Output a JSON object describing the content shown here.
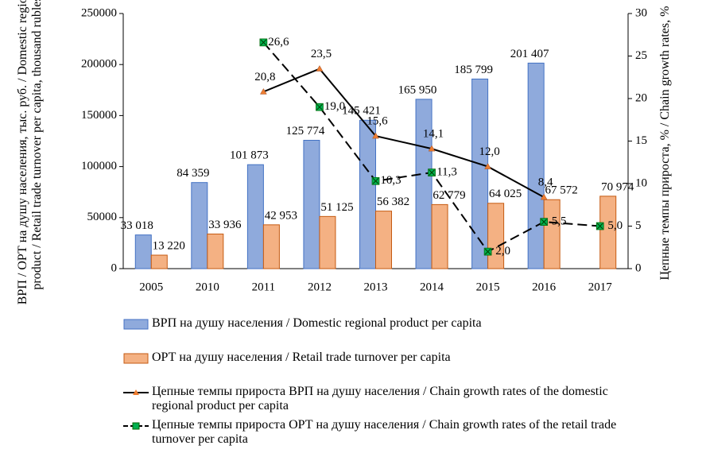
{
  "chart_data": {
    "type": "bar",
    "y_label": "ВРП / ОРТ на душу населения, тыс. руб. / Domestic regional product / Retail trade turnover per capita, thousand rubles",
    "y2_label": "Цепные темпы прироста, % / Chain growth rates, %",
    "categories": [
      "2005",
      "2010",
      "2011",
      "2012",
      "2013",
      "2014",
      "2015",
      "2016",
      "2017"
    ],
    "ylim": [
      0,
      250000
    ],
    "yticks": [
      0,
      50000,
      100000,
      150000,
      200000,
      250000
    ],
    "y2lim": [
      0,
      30
    ],
    "y2ticks": [
      0,
      5,
      10,
      15,
      20,
      25,
      30
    ],
    "series": [
      {
        "name": "ВРП на душу населения / Domestic regional product per capita",
        "type": "bar",
        "color": "#8faadc",
        "edge": "#4472c4",
        "values": [
          33018,
          84359,
          101873,
          125774,
          145421,
          165950,
          185799,
          201407,
          null
        ],
        "value_labels": [
          "33 018",
          "84 359",
          "101 873",
          "125 774",
          "145 421",
          "165 950",
          "185 799",
          "201 407",
          null
        ]
      },
      {
        "name": "ОРТ на душу населения / Retail trade turnover per capita",
        "type": "bar",
        "color": "#f4b183",
        "edge": "#c55a11",
        "values": [
          13220,
          33936,
          42953,
          51125,
          56382,
          62779,
          64025,
          67572,
          70974
        ],
        "value_labels": [
          "13 220",
          "33 936",
          "42 953",
          "51 125",
          "56 382",
          "62 779",
          "64 025",
          "67 572",
          "70 974"
        ]
      },
      {
        "name": "Цепные темпы прироста ВРП на душу населения / Chain growth rates of the domestic regional product per capita",
        "type": "line",
        "axis": "y2",
        "color": "#000000",
        "marker_color": "#ed7d31",
        "marker": "triangle",
        "dash": false,
        "values": [
          null,
          null,
          20.8,
          23.5,
          15.6,
          14.1,
          12.0,
          8.4,
          null
        ],
        "value_labels": [
          null,
          null,
          "20,8",
          "23,5",
          "15,6",
          "14,1",
          "12,0",
          "8,4",
          null
        ]
      },
      {
        "name": "Цепные темпы прироста ОРТ на душу населения / Chain growth rates of the retail trade turnover per capita",
        "type": "line",
        "axis": "y2",
        "color": "#000000",
        "marker_color": "#00b050",
        "marker": "x-square",
        "dash": true,
        "values": [
          null,
          null,
          26.6,
          19.0,
          10.3,
          11.3,
          2.0,
          5.5,
          5.0
        ],
        "value_labels": [
          null,
          null,
          "26,6",
          "19,0",
          "10,3",
          "11,3",
          "2,0",
          "5,5",
          "5,0"
        ]
      }
    ]
  }
}
